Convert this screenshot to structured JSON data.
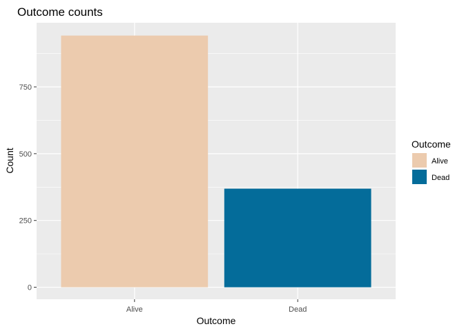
{
  "chart_data": {
    "type": "bar",
    "title": "Outcome counts",
    "xlabel": "Outcome",
    "ylabel": "Count",
    "categories": [
      "Alive",
      "Dead"
    ],
    "values": [
      942,
      369
    ],
    "colors": [
      "#ECCBAE",
      "#046C9A"
    ],
    "ylim": [
      -45,
      990
    ],
    "yticks": [
      0,
      250,
      500,
      750
    ],
    "ytick_labels": [
      "0",
      "250",
      "500",
      "750"
    ],
    "grid": true,
    "panel_background": "#EBEBEB",
    "grid_color": "#FFFFFF",
    "legend": {
      "title": "Outcome",
      "position": "right",
      "entries": [
        "Alive",
        "Dead"
      ]
    }
  }
}
